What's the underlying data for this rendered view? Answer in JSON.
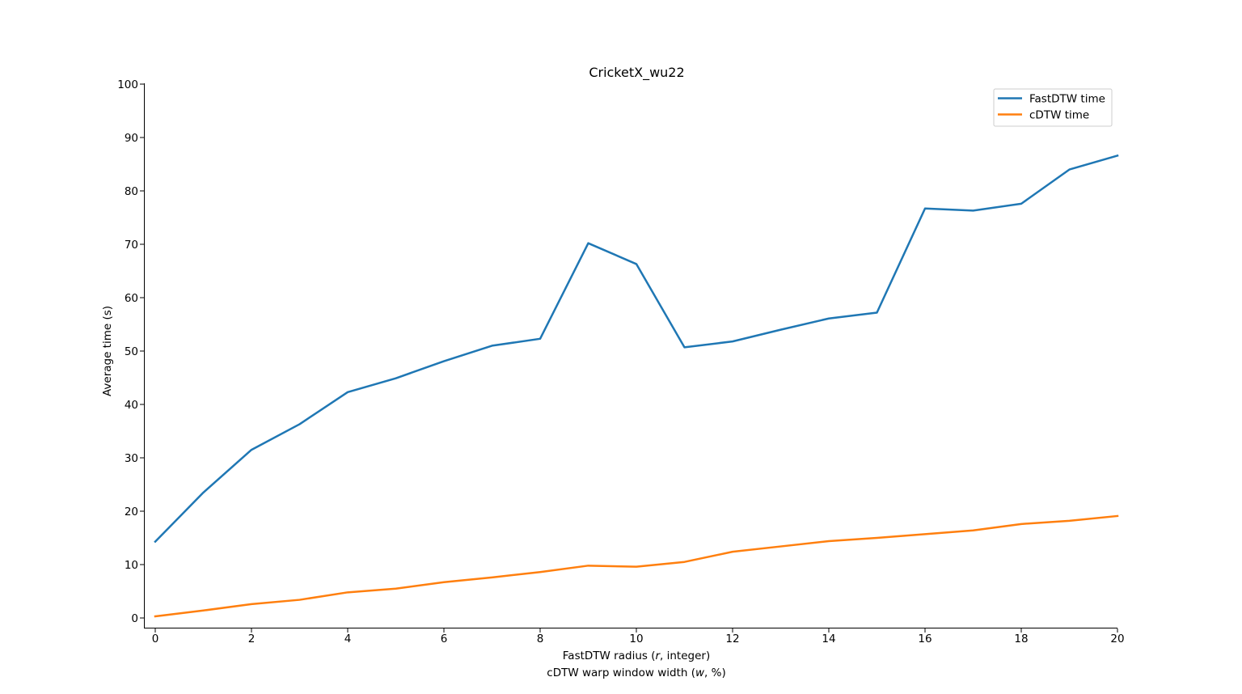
{
  "chart_data": {
    "type": "line",
    "title": "CricketX_wu22",
    "xlabel_line1": "FastDTW radius (",
    "xlabel_line1_var": "r",
    "xlabel_line1_tail": ", integer)",
    "xlabel_line2": "cDTW warp window width (",
    "xlabel_line2_var": "w",
    "xlabel_line2_tail": ", %)",
    "ylabel": "Average time (s)",
    "xlim": [
      0,
      20
    ],
    "ylim": [
      0,
      100
    ],
    "x_ticks": [
      0,
      2,
      4,
      6,
      8,
      10,
      12,
      14,
      16,
      18,
      20
    ],
    "y_ticks": [
      0,
      10,
      20,
      30,
      40,
      50,
      60,
      70,
      80,
      90,
      100
    ],
    "grid": false,
    "legend_position": "top-right",
    "x": [
      0,
      1,
      2,
      3,
      4,
      5,
      6,
      7,
      8,
      9,
      10,
      11,
      12,
      13,
      14,
      15,
      16,
      17,
      18,
      19,
      20
    ],
    "series": [
      {
        "name": "FastDTW time",
        "color": "#1f77b4",
        "values": [
          14.3,
          23.5,
          31.5,
          36.3,
          42.3,
          44.9,
          48.1,
          51.0,
          52.3,
          70.2,
          66.3,
          50.7,
          51.8,
          54.0,
          56.1,
          57.2,
          76.7,
          76.3,
          77.6,
          84.0,
          86.6
        ]
      },
      {
        "name": "cDTW time",
        "color": "#ff7f0e",
        "values": [
          0.3,
          1.4,
          2.6,
          3.4,
          4.8,
          5.5,
          6.7,
          7.6,
          8.6,
          9.8,
          9.6,
          10.5,
          12.4,
          13.4,
          14.4,
          15.0,
          15.7,
          16.4,
          17.6,
          18.2,
          19.1
        ]
      }
    ]
  }
}
